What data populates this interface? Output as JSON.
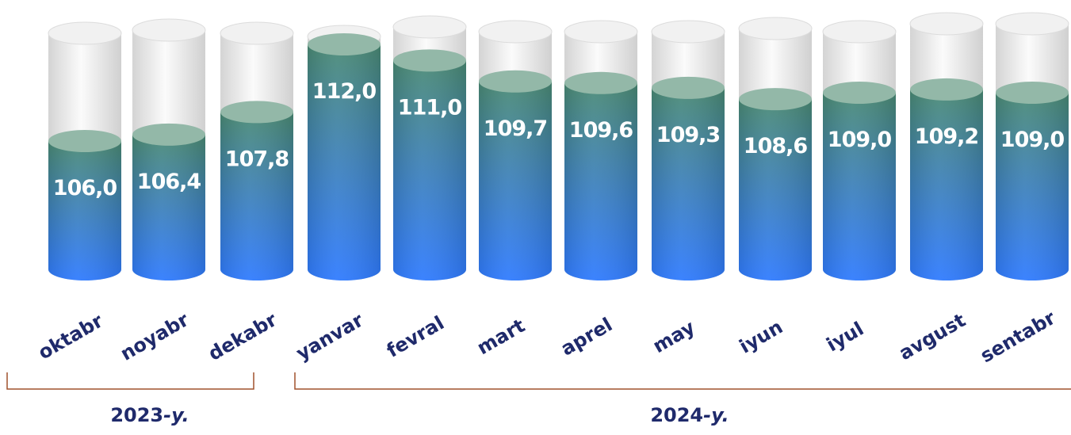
{
  "chart_data": {
    "type": "bar",
    "categories": [
      "oktabr",
      "noyabr",
      "dekabr",
      "yanvar",
      "fevral",
      "mart",
      "aprel",
      "may",
      "iyun",
      "iyul",
      "avgust",
      "sentabr"
    ],
    "values": [
      106.0,
      106.4,
      107.8,
      112.0,
      111.0,
      109.7,
      109.6,
      109.3,
      108.6,
      109.0,
      109.2,
      109.0
    ],
    "value_labels": [
      "106,0",
      "106,4",
      "107,8",
      "112,0",
      "111,0",
      "109,7",
      "109,6",
      "109,3",
      "108,6",
      "109,0",
      "109,2",
      "109,0"
    ],
    "groups": [
      {
        "label": "2023",
        "suffix": "-y.",
        "categories": [
          "oktabr",
          "noyabr",
          "dekabr"
        ]
      },
      {
        "label": "2024",
        "suffix": "-y.",
        "categories": [
          "yanvar",
          "fevral",
          "mart",
          "aprel",
          "may",
          "iyun",
          "iyul",
          "avgust",
          "sentabr"
        ]
      }
    ],
    "colors": {
      "bar_top": "#4a8a74",
      "bar_bottom": "#2f7bff",
      "bar_cap": "#93b8a8",
      "glass": "#e4e4e4",
      "bracket": "#a0522d",
      "category_text": "#1f2a6b",
      "value_text": "#ffffff"
    }
  }
}
